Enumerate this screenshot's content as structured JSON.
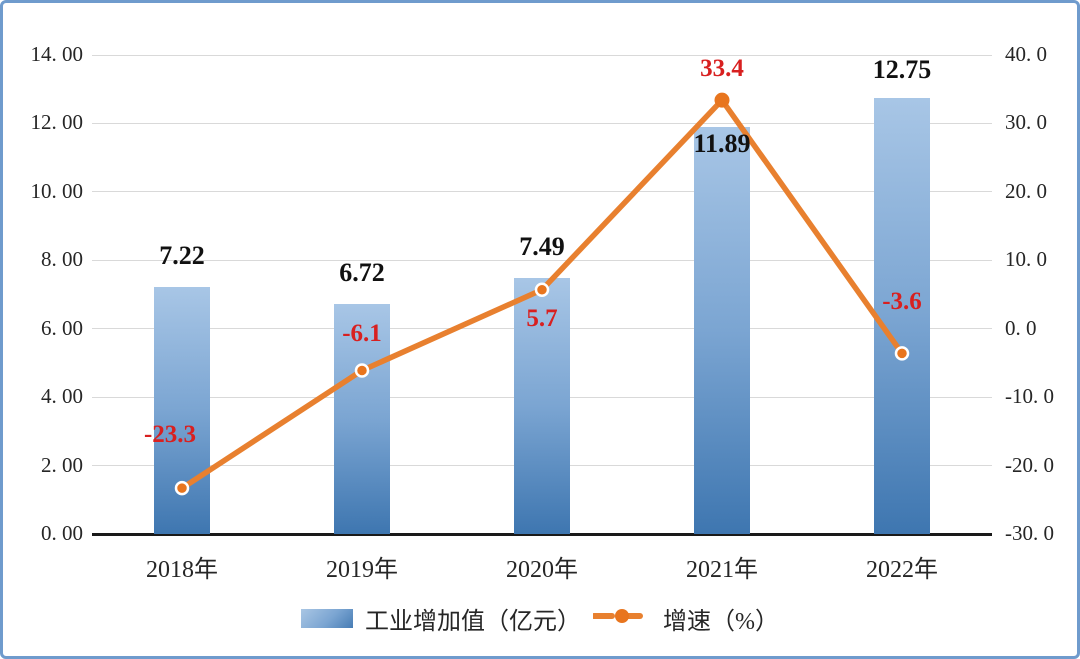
{
  "frame": {
    "border_color": "#6f9bcd",
    "background": "#ffffff"
  },
  "legend": {
    "bar_label": "工业增加值（亿元）",
    "line_label": "增速（%）"
  },
  "chart_data": {
    "type": "bar+line",
    "categories": [
      "2018年",
      "2019年",
      "2020年",
      "2021年",
      "2022年"
    ],
    "series": [
      {
        "name": "工业增加值（亿元）",
        "type": "bar",
        "axis": "left",
        "values": [
          7.22,
          6.72,
          7.49,
          11.89,
          12.75
        ],
        "labels": [
          "7.22",
          "6.72",
          "7.49",
          "11.89",
          "12.75"
        ]
      },
      {
        "name": "增速（%）",
        "type": "line",
        "axis": "right",
        "values": [
          -23.3,
          -6.1,
          5.7,
          33.4,
          -3.6
        ],
        "labels": [
          "-23.3",
          "-6.1",
          "5.7",
          "33.4",
          "-3.6"
        ]
      }
    ],
    "left_axis": {
      "min": 0,
      "max": 14,
      "step": 2,
      "tick_labels": [
        "0. 00",
        "2. 00",
        "4. 00",
        "6. 00",
        "8. 00",
        "10. 00",
        "12. 00",
        "14. 00"
      ]
    },
    "right_axis": {
      "min": -30,
      "max": 40,
      "step": 10,
      "tick_labels": [
        "-30. 0",
        "-20. 0",
        "-10. 0",
        "0. 0",
        "10. 0",
        "20. 0",
        "30. 0",
        "40. 0"
      ]
    },
    "grid": true,
    "legend_position": "bottom",
    "colors": {
      "bar_gradient_top": "#a8c6e6",
      "bar_gradient_bottom": "#3e76b0",
      "line": "#e8802f",
      "marker_fill": "#e8751e",
      "marker_ring": "#ffffff",
      "bar_value_label": "#111111",
      "line_value_label": "#d82020",
      "gridline": "#d9d9d9",
      "axis_line": "#1a1a1a",
      "tick_text": "#262626"
    },
    "layout_hints": {
      "bar_label_dy": [
        -30,
        -30,
        -30,
        18,
        -27
      ],
      "line_label_dy": [
        -52,
        -35,
        30,
        -30,
        -50
      ],
      "line_label_dx": [
        -12,
        0,
        0,
        0,
        0
      ],
      "marker_ring_visible": [
        true,
        true,
        true,
        false,
        true
      ]
    }
  }
}
